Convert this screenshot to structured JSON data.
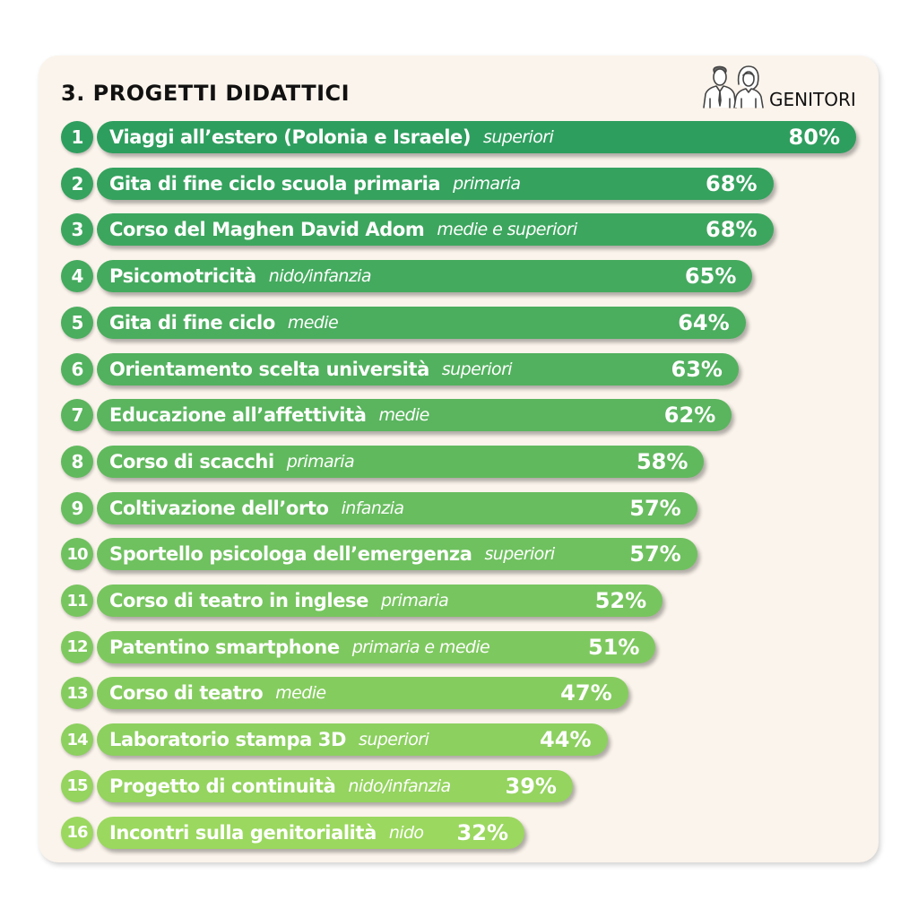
{
  "header": {
    "title": "3. PROGETTI DIDATTICI",
    "audience_label": "GENITORI",
    "audience_icon": "parents-icon"
  },
  "colors": {
    "card_background": "#fbf4ec",
    "bar_dark": "#2e9e5e",
    "bar_light": "#9bd85f"
  },
  "chart_data": {
    "type": "bar",
    "orientation": "horizontal",
    "title": "3. PROGETTI DIDATTICI",
    "value_unit": "%",
    "xlim": [
      0,
      100
    ],
    "grid": false,
    "rows": [
      {
        "rank": "1",
        "label": "Viaggi all’estero (Polonia e Israele)",
        "level": "superiori",
        "value": 80,
        "value_label": "80%"
      },
      {
        "rank": "2",
        "label": "Gita di fine ciclo scuola primaria",
        "level": "primaria",
        "value": 68,
        "value_label": "68%"
      },
      {
        "rank": "3",
        "label": "Corso del Maghen David Adom",
        "level": "medie e superiori",
        "value": 68,
        "value_label": "68%"
      },
      {
        "rank": "4",
        "label": "Psicomotricità",
        "level": "nido/infanzia",
        "value": 65,
        "value_label": "65%"
      },
      {
        "rank": "5",
        "label": "Gita di fine ciclo",
        "level": "medie",
        "value": 64,
        "value_label": "64%"
      },
      {
        "rank": "6",
        "label": "Orientamento scelta università",
        "level": "superiori",
        "value": 63,
        "value_label": "63%"
      },
      {
        "rank": "7",
        "label": "Educazione all’affettività",
        "level": "medie",
        "value": 62,
        "value_label": "62%"
      },
      {
        "rank": "8",
        "label": "Corso di scacchi",
        "level": "primaria",
        "value": 58,
        "value_label": "58%"
      },
      {
        "rank": "9",
        "label": "Coltivazione dell’orto",
        "level": "infanzia",
        "value": 57,
        "value_label": "57%"
      },
      {
        "rank": "10",
        "label": "Sportello psicologa dell’emergenza",
        "level": "superiori",
        "value": 57,
        "value_label": "57%"
      },
      {
        "rank": "11",
        "label": "Corso di teatro in inglese",
        "level": "primaria",
        "value": 52,
        "value_label": "52%"
      },
      {
        "rank": "12",
        "label": "Patentino smartphone",
        "level": "primaria e medie",
        "value": 51,
        "value_label": "51%"
      },
      {
        "rank": "13",
        "label": "Corso di teatro",
        "level": "medie",
        "value": 47,
        "value_label": "47%"
      },
      {
        "rank": "14",
        "label": "Laboratorio stampa 3D",
        "level": "superiori",
        "value": 44,
        "value_label": "44%"
      },
      {
        "rank": "15",
        "label": "Progetto di continuità",
        "level": "nido/infanzia",
        "value": 39,
        "value_label": "39%"
      },
      {
        "rank": "16",
        "label": "Incontri sulla genitorialità",
        "level": "nido",
        "value": 32,
        "value_label": "32%"
      }
    ]
  }
}
